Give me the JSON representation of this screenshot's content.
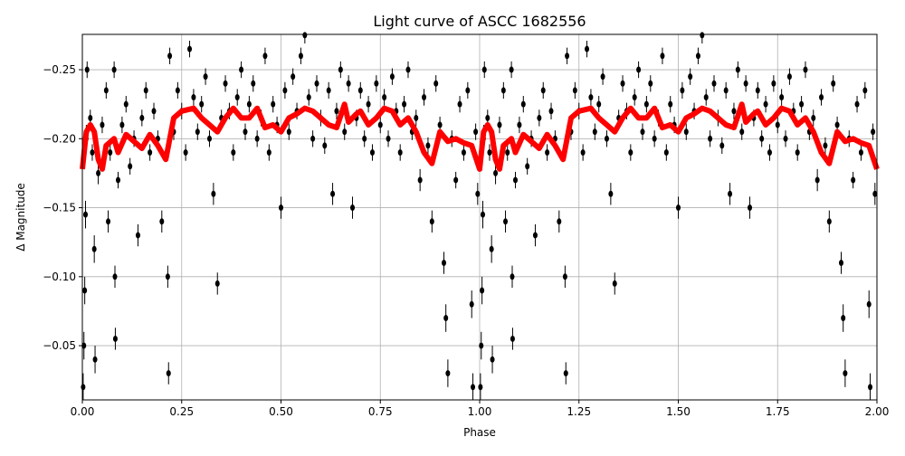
{
  "chart_data": {
    "type": "scatter",
    "title": "Light curve of ASCC 1682556",
    "xlabel": "Phase",
    "ylabel": "Δ Magnitude",
    "xlim": [
      0,
      2
    ],
    "ylim": [
      -0.2756,
      -0.0107
    ],
    "y_inverted": true,
    "grid": true,
    "xticks": [
      "0.00",
      "0.25",
      "0.50",
      "0.75",
      "1.00",
      "1.25",
      "1.50",
      "1.75",
      "2.00"
    ],
    "xtick_values": [
      0,
      0.25,
      0.5,
      0.75,
      1,
      1.25,
      1.5,
      1.75,
      2
    ],
    "yticks": [
      "−0.25",
      "−0.20",
      "−0.15",
      "−0.10",
      "−0.05"
    ],
    "ytick_values": [
      -0.25,
      -0.2,
      -0.15,
      -0.1,
      -0.05
    ],
    "points_color": "#000000",
    "curve_color": "#ff0000",
    "points_repeat_period": 1,
    "points": [
      [
        0.002,
        -0.02,
        0.01
      ],
      [
        0.004,
        -0.05,
        0.01
      ],
      [
        0.006,
        -0.09,
        0.01
      ],
      [
        0.008,
        -0.145,
        0.01
      ],
      [
        0.01,
        -0.2,
        0.01
      ],
      [
        0.012,
        -0.25,
        0.006
      ],
      [
        0.02,
        -0.215,
        0.006
      ],
      [
        0.025,
        -0.19,
        0.006
      ],
      [
        0.03,
        -0.12,
        0.01
      ],
      [
        0.032,
        -0.04,
        0.01
      ],
      [
        0.04,
        -0.175,
        0.008
      ],
      [
        0.05,
        -0.21,
        0.006
      ],
      [
        0.06,
        -0.235,
        0.006
      ],
      [
        0.065,
        -0.14,
        0.008
      ],
      [
        0.07,
        -0.19,
        0.006
      ],
      [
        0.08,
        -0.25,
        0.006
      ],
      [
        0.082,
        -0.1,
        0.008
      ],
      [
        0.083,
        -0.055,
        0.008
      ],
      [
        0.09,
        -0.17,
        0.006
      ],
      [
        0.1,
        -0.21,
        0.006
      ],
      [
        0.11,
        -0.225,
        0.006
      ],
      [
        0.12,
        -0.18,
        0.006
      ],
      [
        0.13,
        -0.2,
        0.006
      ],
      [
        0.14,
        -0.13,
        0.008
      ],
      [
        0.15,
        -0.215,
        0.006
      ],
      [
        0.16,
        -0.235,
        0.006
      ],
      [
        0.17,
        -0.19,
        0.006
      ],
      [
        0.18,
        -0.22,
        0.006
      ],
      [
        0.19,
        -0.2,
        0.006
      ],
      [
        0.2,
        -0.14,
        0.008
      ],
      [
        0.215,
        -0.1,
        0.008
      ],
      [
        0.217,
        -0.03,
        0.008
      ],
      [
        0.22,
        -0.26,
        0.006
      ],
      [
        0.23,
        -0.205,
        0.006
      ],
      [
        0.24,
        -0.235,
        0.006
      ],
      [
        0.25,
        -0.22,
        0.006
      ],
      [
        0.26,
        -0.19,
        0.006
      ],
      [
        0.27,
        -0.265,
        0.006
      ],
      [
        0.28,
        -0.23,
        0.006
      ],
      [
        0.29,
        -0.205,
        0.006
      ],
      [
        0.3,
        -0.225,
        0.006
      ],
      [
        0.31,
        -0.245,
        0.006
      ],
      [
        0.32,
        -0.2,
        0.006
      ],
      [
        0.33,
        -0.16,
        0.008
      ],
      [
        0.34,
        -0.095,
        0.008
      ],
      [
        0.35,
        -0.215,
        0.006
      ],
      [
        0.36,
        -0.24,
        0.006
      ],
      [
        0.37,
        -0.22,
        0.006
      ],
      [
        0.38,
        -0.19,
        0.006
      ],
      [
        0.39,
        -0.23,
        0.006
      ],
      [
        0.4,
        -0.25,
        0.006
      ],
      [
        0.41,
        -0.205,
        0.006
      ],
      [
        0.42,
        -0.225,
        0.006
      ],
      [
        0.43,
        -0.24,
        0.006
      ],
      [
        0.44,
        -0.2,
        0.006
      ],
      [
        0.45,
        -0.215,
        0.006
      ],
      [
        0.46,
        -0.26,
        0.006
      ],
      [
        0.47,
        -0.19,
        0.006
      ],
      [
        0.48,
        -0.225,
        0.006
      ],
      [
        0.49,
        -0.21,
        0.006
      ],
      [
        0.5,
        -0.15,
        0.008
      ],
      [
        0.51,
        -0.235,
        0.006
      ],
      [
        0.52,
        -0.205,
        0.006
      ],
      [
        0.53,
        -0.245,
        0.006
      ],
      [
        0.54,
        -0.22,
        0.006
      ],
      [
        0.55,
        -0.26,
        0.006
      ],
      [
        0.56,
        -0.275,
        0.006
      ],
      [
        0.57,
        -0.23,
        0.006
      ],
      [
        0.58,
        -0.2,
        0.006
      ],
      [
        0.59,
        -0.24,
        0.006
      ],
      [
        0.6,
        -0.215,
        0.006
      ],
      [
        0.61,
        -0.195,
        0.006
      ],
      [
        0.62,
        -0.235,
        0.006
      ],
      [
        0.63,
        -0.16,
        0.008
      ],
      [
        0.64,
        -0.22,
        0.006
      ],
      [
        0.65,
        -0.25,
        0.006
      ],
      [
        0.66,
        -0.205,
        0.006
      ],
      [
        0.67,
        -0.24,
        0.006
      ],
      [
        0.68,
        -0.15,
        0.008
      ],
      [
        0.69,
        -0.215,
        0.006
      ],
      [
        0.7,
        -0.235,
        0.006
      ],
      [
        0.71,
        -0.2,
        0.006
      ],
      [
        0.72,
        -0.225,
        0.006
      ],
      [
        0.73,
        -0.19,
        0.006
      ],
      [
        0.74,
        -0.24,
        0.006
      ],
      [
        0.75,
        -0.21,
        0.006
      ],
      [
        0.76,
        -0.23,
        0.006
      ],
      [
        0.77,
        -0.2,
        0.006
      ],
      [
        0.78,
        -0.245,
        0.006
      ],
      [
        0.79,
        -0.22,
        0.006
      ],
      [
        0.8,
        -0.19,
        0.006
      ],
      [
        0.81,
        -0.225,
        0.006
      ],
      [
        0.82,
        -0.25,
        0.006
      ],
      [
        0.83,
        -0.205,
        0.006
      ],
      [
        0.84,
        -0.215,
        0.006
      ],
      [
        0.85,
        -0.17,
        0.008
      ],
      [
        0.86,
        -0.23,
        0.006
      ],
      [
        0.87,
        -0.195,
        0.006
      ],
      [
        0.88,
        -0.14,
        0.008
      ],
      [
        0.89,
        -0.24,
        0.006
      ],
      [
        0.9,
        -0.21,
        0.006
      ],
      [
        0.91,
        -0.11,
        0.008
      ],
      [
        0.915,
        -0.07,
        0.01
      ],
      [
        0.92,
        -0.03,
        0.01
      ],
      [
        0.93,
        -0.2,
        0.006
      ],
      [
        0.94,
        -0.17,
        0.006
      ],
      [
        0.95,
        -0.225,
        0.006
      ],
      [
        0.96,
        -0.19,
        0.006
      ],
      [
        0.97,
        -0.235,
        0.006
      ],
      [
        0.98,
        -0.08,
        0.01
      ],
      [
        0.983,
        -0.02,
        0.01
      ],
      [
        0.99,
        -0.205,
        0.006
      ],
      [
        0.995,
        -0.16,
        0.008
      ]
    ],
    "curve": {
      "phase": [
        0,
        0.01,
        0.02,
        0.03,
        0.04,
        0.05,
        0.06,
        0.08,
        0.09,
        0.11,
        0.13,
        0.15,
        0.17,
        0.19,
        0.21,
        0.23,
        0.25,
        0.28,
        0.3,
        0.32,
        0.34,
        0.36,
        0.38,
        0.4,
        0.42,
        0.44,
        0.46,
        0.48,
        0.5,
        0.52,
        0.54,
        0.56,
        0.58,
        0.6,
        0.62,
        0.64,
        0.66,
        0.67,
        0.69,
        0.7,
        0.72,
        0.74,
        0.76,
        0.78,
        0.8,
        0.82,
        0.84,
        0.86,
        0.88,
        0.9,
        0.92,
        0.94,
        0.96,
        0.98,
        1.0
      ],
      "mag": [
        -0.178,
        -0.205,
        -0.21,
        -0.205,
        -0.185,
        -0.178,
        -0.195,
        -0.2,
        -0.19,
        -0.203,
        -0.198,
        -0.193,
        -0.203,
        -0.195,
        -0.185,
        -0.215,
        -0.22,
        -0.222,
        -0.215,
        -0.21,
        -0.205,
        -0.215,
        -0.222,
        -0.215,
        -0.215,
        -0.222,
        -0.208,
        -0.21,
        -0.205,
        -0.215,
        -0.218,
        -0.222,
        -0.22,
        -0.215,
        -0.21,
        -0.208,
        -0.225,
        -0.212,
        -0.218,
        -0.22,
        -0.21,
        -0.215,
        -0.222,
        -0.22,
        -0.21,
        -0.215,
        -0.205,
        -0.19,
        -0.182,
        -0.205,
        -0.198,
        -0.2,
        -0.197,
        -0.195,
        -0.178
      ]
    }
  }
}
